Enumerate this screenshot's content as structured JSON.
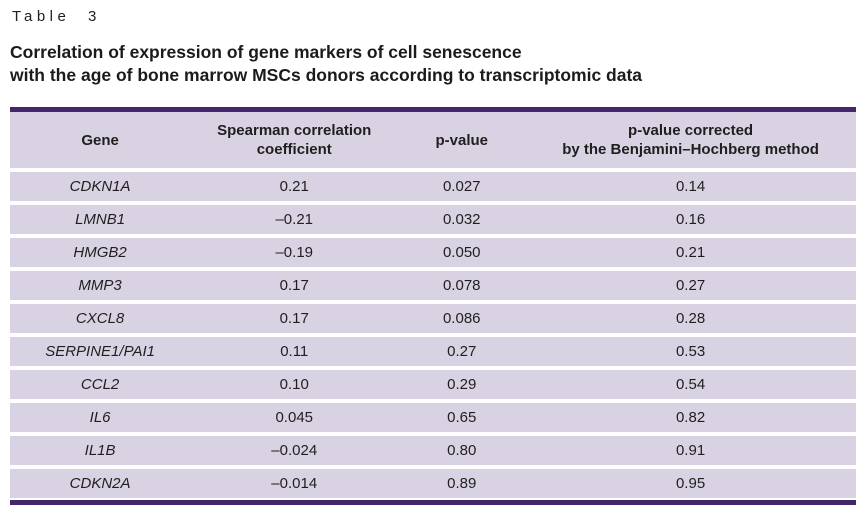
{
  "page": {
    "table_label": "Table 3",
    "title_line1": "Correlation of expression of gene markers of cell senescence",
    "title_line2": "with the age of bone marrow MSCs donors according to transcriptomic data"
  },
  "colors": {
    "row_background": "#d8d2e3",
    "rule_purple": "#42276b",
    "text": "#211e1f",
    "page_background": "#ffffff"
  },
  "table": {
    "columns": [
      "Gene",
      "Spearman correlation\ncoefficient",
      "p-value",
      "p-value corrected\nby the Benjamini–Hochberg method"
    ],
    "rows": [
      {
        "gene": "CDKN1A",
        "spearman": "0.21",
        "p_value": "0.027",
        "p_adj": "0.14"
      },
      {
        "gene": "LMNB1",
        "spearman": "–0.21",
        "p_value": "0.032",
        "p_adj": "0.16"
      },
      {
        "gene": "HMGB2",
        "spearman": "–0.19",
        "p_value": "0.050",
        "p_adj": "0.21"
      },
      {
        "gene": "MMP3",
        "spearman": "0.17",
        "p_value": "0.078",
        "p_adj": "0.27"
      },
      {
        "gene": "CXCL8",
        "spearman": "0.17",
        "p_value": "0.086",
        "p_adj": "0.28"
      },
      {
        "gene": "SERPINE1/PAI1",
        "spearman": "0.11",
        "p_value": "0.27",
        "p_adj": "0.53"
      },
      {
        "gene": "CCL2",
        "spearman": "0.10",
        "p_value": "0.29",
        "p_adj": "0.54"
      },
      {
        "gene": "IL6",
        "spearman": "0.045",
        "p_value": "0.65",
        "p_adj": "0.82"
      },
      {
        "gene": "IL1B",
        "spearman": "–0.024",
        "p_value": "0.80",
        "p_adj": "0.91"
      },
      {
        "gene": "CDKN2A",
        "spearman": "–0.014",
        "p_value": "0.89",
        "p_adj": "0.95"
      }
    ]
  }
}
